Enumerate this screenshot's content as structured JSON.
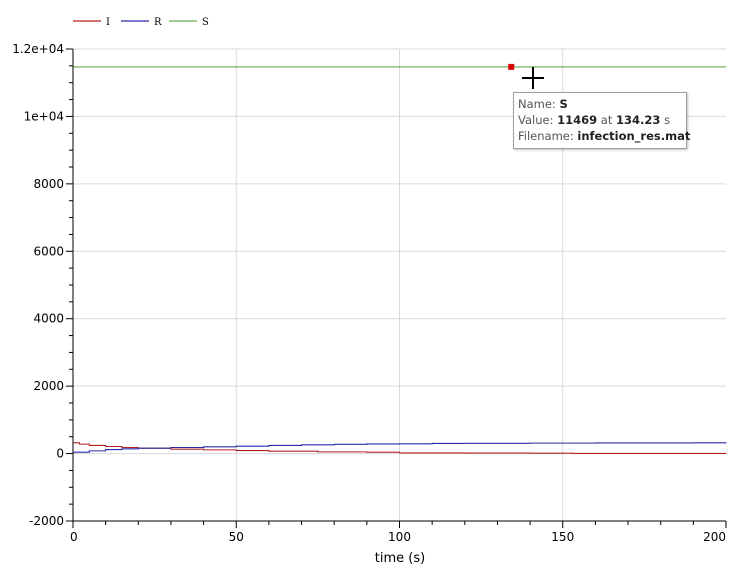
{
  "chart_data": {
    "type": "line",
    "xlabel": "time (s)",
    "ylabel": "",
    "xlim": [
      0,
      200
    ],
    "ylim": [
      -2000,
      12000
    ],
    "x_ticks": [
      {
        "value": 0,
        "label": "0"
      },
      {
        "value": 50,
        "label": "50"
      },
      {
        "value": 100,
        "label": "100"
      },
      {
        "value": 150,
        "label": "150"
      },
      {
        "value": 200,
        "label": "200"
      }
    ],
    "y_ticks": [
      {
        "value": -2000,
        "label": "-2000"
      },
      {
        "value": 0,
        "label": "0"
      },
      {
        "value": 2000,
        "label": "2000"
      },
      {
        "value": 4000,
        "label": "4000"
      },
      {
        "value": 6000,
        "label": "6000"
      },
      {
        "value": 8000,
        "label": "8000"
      },
      {
        "value": 10000,
        "label": "1e+04"
      },
      {
        "value": 12000,
        "label": "1.2e+04"
      }
    ],
    "grid": true,
    "legend_position": "top-left",
    "series": [
      {
        "name": "I",
        "color": "#b22222",
        "x": [
          0,
          2,
          5,
          10,
          15,
          20,
          30,
          40,
          50,
          60,
          75,
          90,
          100,
          120,
          140,
          153,
          170,
          200
        ],
        "y": [
          320,
          280,
          240,
          210,
          180,
          160,
          130,
          110,
          90,
          70,
          50,
          40,
          20,
          15,
          10,
          5,
          3,
          0
        ]
      },
      {
        "name": "R",
        "color": "#2a2aa8",
        "x": [
          0,
          5,
          10,
          15,
          20,
          30,
          40,
          50,
          60,
          70,
          80,
          90,
          100,
          110,
          120,
          140,
          160,
          190,
          200
        ],
        "y": [
          40,
          80,
          120,
          140,
          160,
          180,
          200,
          220,
          240,
          260,
          275,
          285,
          290,
          300,
          305,
          310,
          315,
          320,
          330
        ]
      },
      {
        "name": "S",
        "color": "#6aa84f",
        "x": [
          0,
          200
        ],
        "y": [
          11469,
          11469
        ]
      }
    ],
    "marker": {
      "x": 134.23,
      "y": 11469,
      "color": "#dd0000"
    },
    "tooltip": {
      "name_label": "Name:",
      "name_value": "S",
      "value_label": "Value:",
      "value_value": "11469",
      "value_at": "at",
      "value_time": "134.23",
      "value_unit": "s",
      "filename_label": "Filename:",
      "filename_value": "infection_res.mat"
    }
  }
}
